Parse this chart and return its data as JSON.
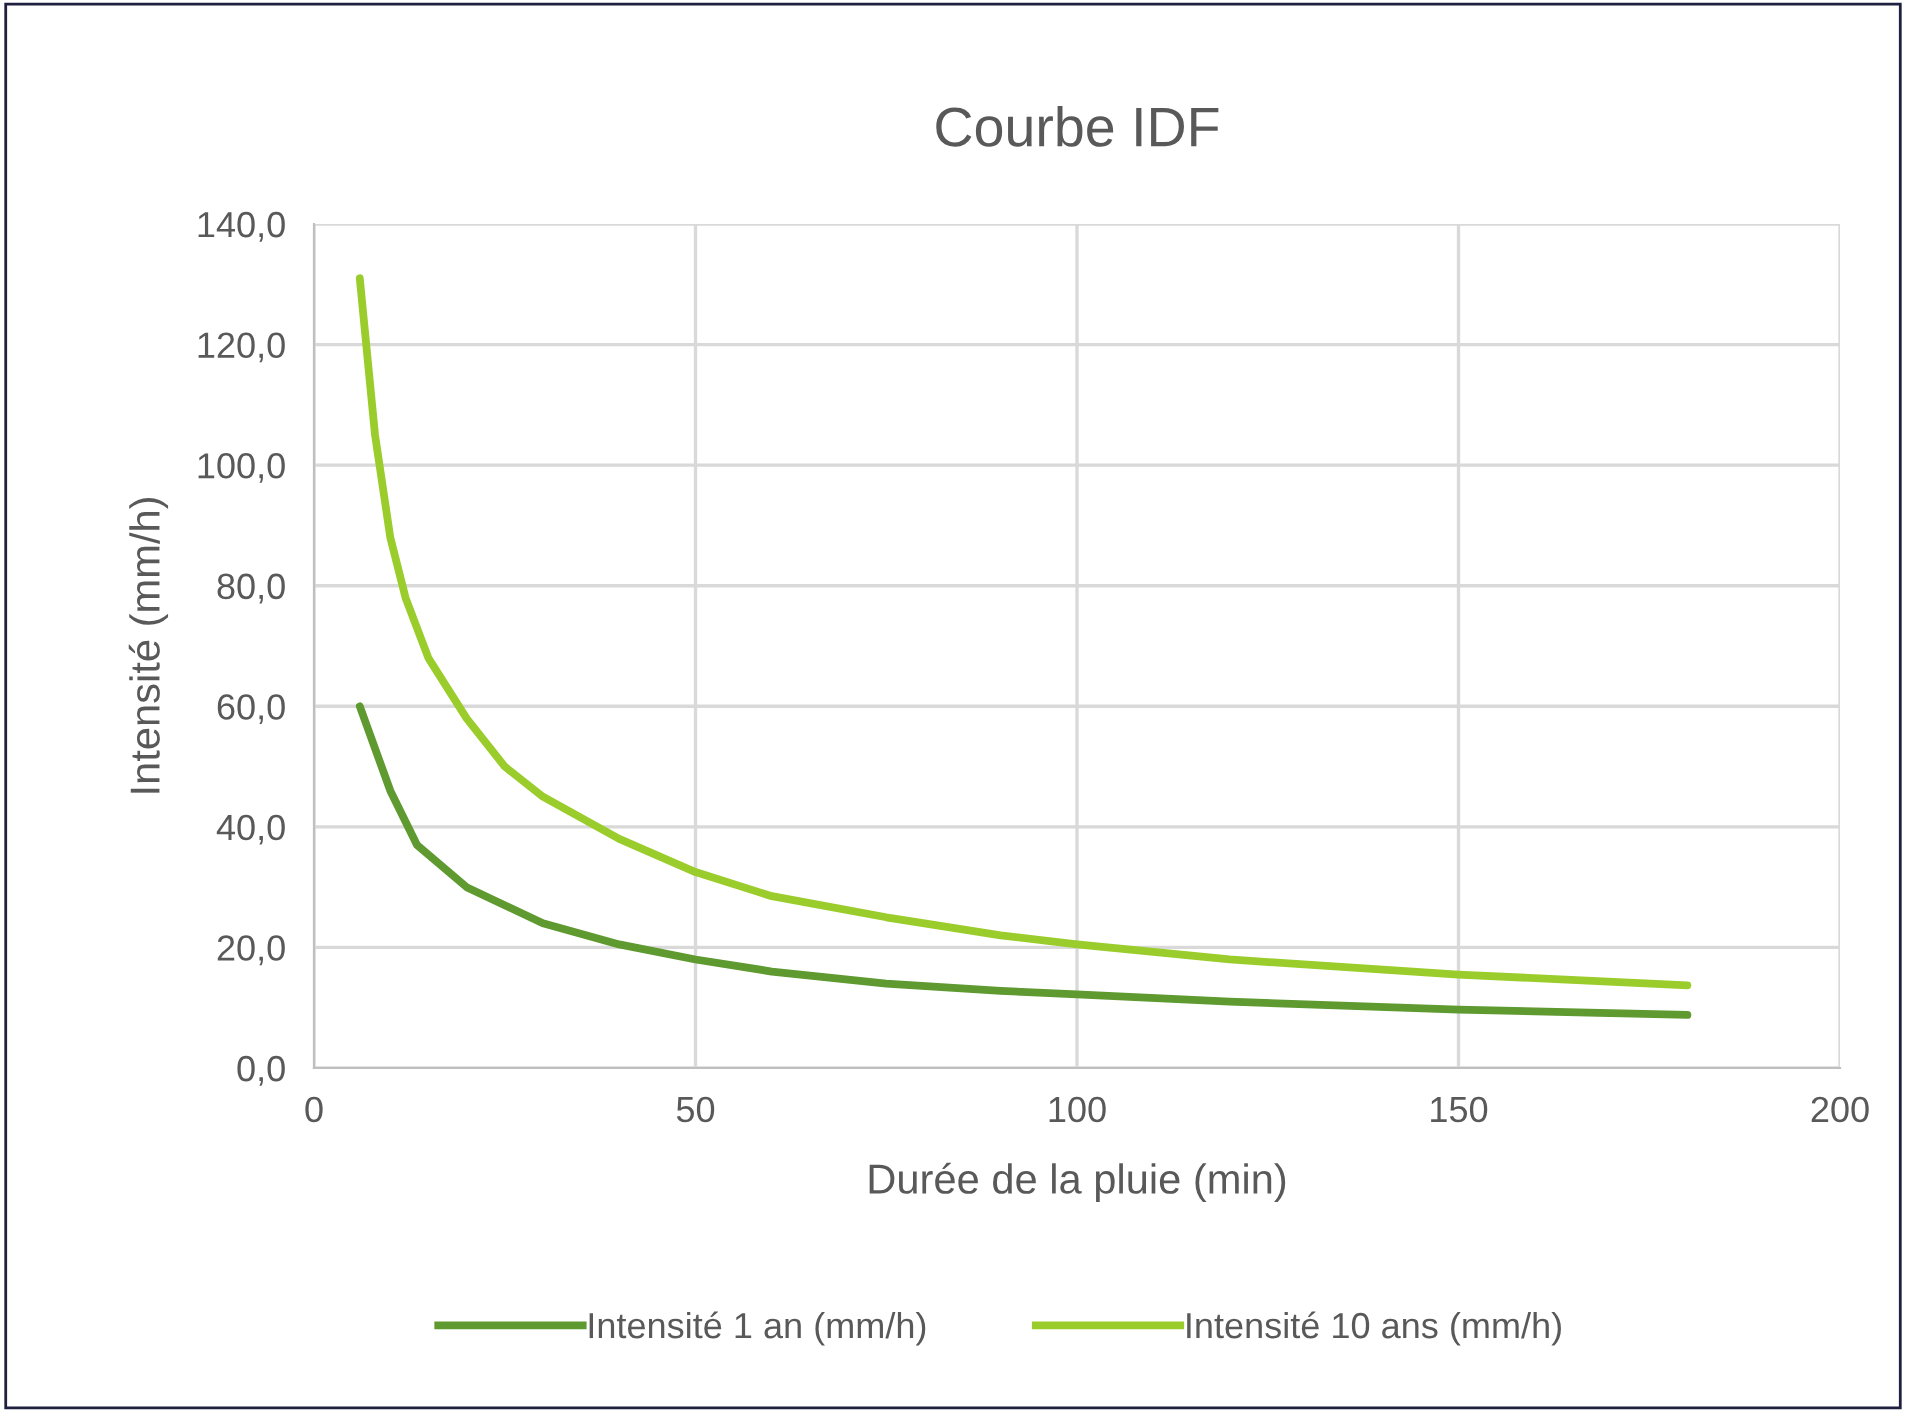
{
  "chart_data": {
    "type": "line",
    "title": "Courbe IDF",
    "xlabel": "Durée de la pluie (min)",
    "ylabel": "Intensité (mm/h)",
    "xlim": [
      0,
      200
    ],
    "xticks": [
      0,
      50,
      100,
      150,
      200
    ],
    "ylim": [
      0,
      140
    ],
    "yticks": [
      {
        "value": 0,
        "label": "0,0"
      },
      {
        "value": 20,
        "label": "20,0"
      },
      {
        "value": 40,
        "label": "40,0"
      },
      {
        "value": 60,
        "label": "60,0"
      },
      {
        "value": 80,
        "label": "80,0"
      },
      {
        "value": 100,
        "label": "100,0"
      },
      {
        "value": 120,
        "label": "120,0"
      },
      {
        "value": 140,
        "label": "140,0"
      }
    ],
    "grid": true,
    "legend": "bottom",
    "marker": "none",
    "line_style": "solid",
    "series": [
      {
        "name": "Intensité 1 an (mm/h)",
        "color": "#5e9a2f",
        "x": [
          6,
          10,
          13.5,
          20,
          30,
          40,
          50,
          60,
          75,
          90,
          100,
          120,
          150,
          180
        ],
        "values": [
          60,
          46,
          37,
          30,
          24,
          20.5,
          18,
          16,
          14,
          12.8,
          12.2,
          11,
          9.7,
          8.8
        ]
      },
      {
        "name": "Intensité 10 ans (mm/h)",
        "color": "#9acd2b",
        "x": [
          6,
          8,
          10,
          12,
          15,
          20,
          25,
          30,
          40,
          50,
          60,
          75,
          90,
          100,
          120,
          150,
          180
        ],
        "values": [
          131,
          105,
          88,
          78,
          68,
          58,
          50,
          45,
          38,
          32.5,
          28.5,
          25,
          22,
          20.5,
          18,
          15.5,
          13.7
        ]
      }
    ]
  }
}
